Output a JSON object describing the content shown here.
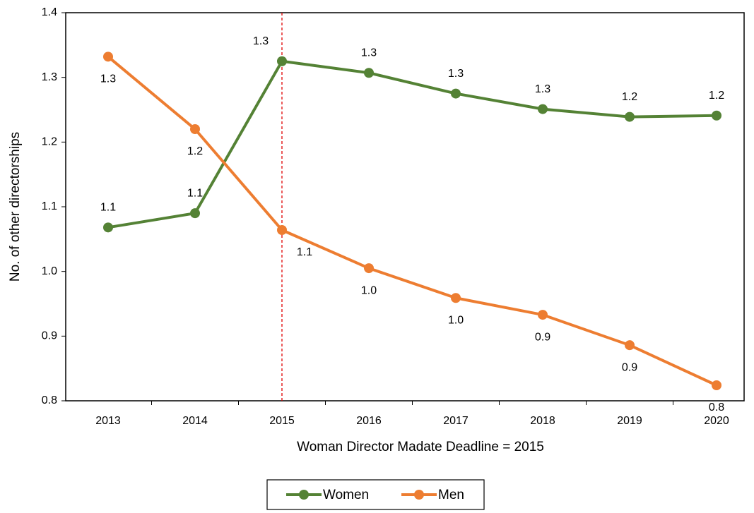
{
  "chart_data": {
    "type": "line",
    "x_label": "Woman Director Madate Deadline = 2015",
    "y_label": "No. of other directorships",
    "categories": [
      "2013",
      "2014",
      "2015",
      "2016",
      "2017",
      "2018",
      "2019",
      "2020"
    ],
    "series": [
      {
        "name": "Women",
        "color": "#548235",
        "values": [
          1.068,
          1.09,
          1.325,
          1.307,
          1.275,
          1.251,
          1.239,
          1.241
        ],
        "value_labels": [
          "1.1",
          "1.1",
          "1.3",
          "1.3",
          "1.3",
          "1.3",
          "1.2",
          "1.2"
        ]
      },
      {
        "name": "Men",
        "color": "#ed7d31",
        "values": [
          1.332,
          1.22,
          1.064,
          1.005,
          0.959,
          0.933,
          0.886,
          0.824
        ],
        "value_labels": [
          "1.3",
          "1.2",
          "1.1",
          "1.0",
          "1.0",
          "0.9",
          "0.9",
          "0.8"
        ]
      }
    ],
    "ylim": [
      0.8,
      1.4
    ],
    "yticks": [
      0.8,
      0.9,
      {
        "value": 1.0,
        "label": "1.0"
      },
      1.1,
      1.2,
      1.3,
      1.4
    ],
    "legend": "bottom"
  }
}
